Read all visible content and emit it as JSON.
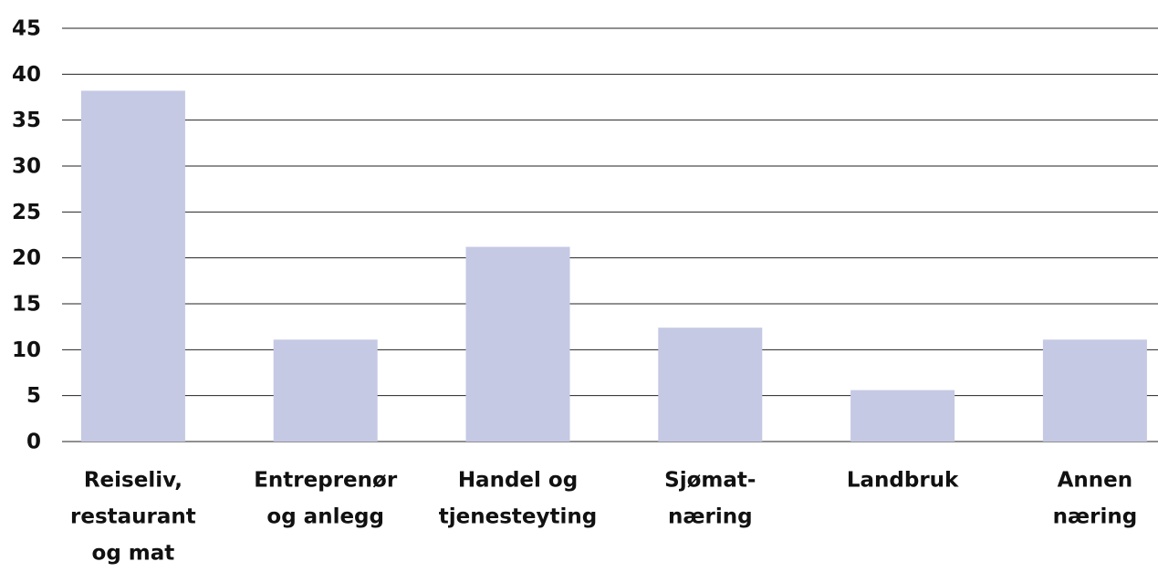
{
  "chart_data": {
    "type": "bar",
    "categories": [
      [
        "Reiseliv,",
        "restaurant",
        "og mat"
      ],
      [
        "Entreprenør",
        "og anlegg"
      ],
      [
        "Handel og",
        "tjenesteyting"
      ],
      [
        "Sjømat-",
        "næring"
      ],
      [
        "Landbruk"
      ],
      [
        "Annen",
        "næring"
      ]
    ],
    "values": [
      38.2,
      11.1,
      21.2,
      12.4,
      5.6,
      11.1
    ],
    "color": "#c5c9e4",
    "ylim": [
      0,
      45
    ],
    "yticks": [
      0,
      5,
      10,
      15,
      20,
      25,
      30,
      35,
      40,
      45
    ],
    "grid": true
  }
}
